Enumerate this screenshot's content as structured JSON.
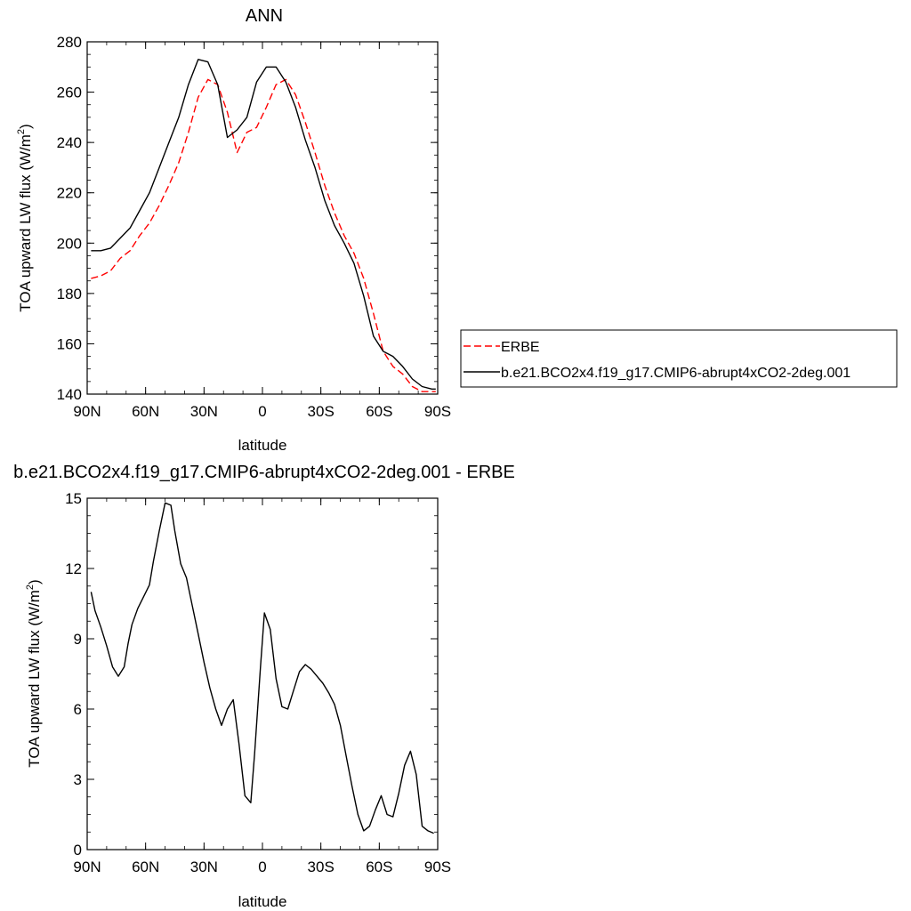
{
  "chart_data": [
    {
      "type": "line",
      "title": "ANN",
      "xlabel": "latitude",
      "ylabel": "TOA upward LW flux (W/m",
      "ylabel_sup": "2",
      "ylabel_end": ")",
      "xlim": [
        -90,
        90
      ],
      "ylim": [
        140,
        280
      ],
      "xticks": [
        -90,
        -60,
        -30,
        0,
        30,
        60,
        90
      ],
      "xtick_labels": [
        "90N",
        "60N",
        "30N",
        "0",
        "30S",
        "60S",
        "90S"
      ],
      "yticks": [
        140,
        160,
        180,
        200,
        220,
        240,
        260,
        280
      ],
      "ytick_labels": [
        "140",
        "160",
        "180",
        "200",
        "220",
        "240",
        "260",
        "280"
      ],
      "x": [
        -88,
        -83,
        -78,
        -73,
        -68,
        -63,
        -58,
        -53,
        -48,
        -43,
        -38,
        -33,
        -28,
        -23,
        -18,
        -13,
        -8,
        -3,
        2,
        7,
        12,
        17,
        22,
        27,
        32,
        37,
        42,
        47,
        52,
        57,
        62,
        67,
        72,
        77,
        82,
        87,
        89
      ],
      "series": [
        {
          "name": "ERBE",
          "color": "#ff0000",
          "dash": "dashed",
          "values": [
            186,
            187,
            189,
            194,
            197,
            203,
            208,
            215,
            223,
            232,
            244,
            258,
            265,
            263,
            252,
            236,
            244,
            246,
            254,
            263,
            265,
            259,
            248,
            236,
            223,
            212,
            203,
            196,
            186,
            172,
            157,
            151,
            148,
            143,
            141,
            141,
            141
          ]
        },
        {
          "name": "b.e21.BCO2x4.f19_g17.CMIP6-abrupt4xCO2-2deg.001",
          "color": "#000000",
          "dash": "solid",
          "values": [
            197,
            197,
            198,
            202,
            206,
            213,
            220,
            230,
            240,
            250,
            263,
            273,
            272,
            263,
            242,
            245,
            250,
            264,
            270,
            270,
            264,
            254,
            241,
            230,
            217,
            207,
            200,
            192,
            179,
            163,
            157,
            155,
            151,
            146,
            143,
            142,
            142
          ]
        }
      ],
      "legend": {
        "location": "right",
        "entries": [
          "ERBE",
          "b.e21.BCO2x4.f19_g17.CMIP6-abrupt4xCO2-2deg.001"
        ]
      },
      "grid": false
    },
    {
      "type": "line",
      "title": "b.e21.BCO2x4.f19_g17.CMIP6-abrupt4xCO2-2deg.001 - ERBE",
      "xlabel": "latitude",
      "ylabel": "TOA upward LW flux (W/m",
      "ylabel_sup": "2",
      "ylabel_end": ")",
      "xlim": [
        -90,
        90
      ],
      "ylim": [
        0,
        15
      ],
      "xticks": [
        -90,
        -60,
        -30,
        0,
        30,
        60,
        90
      ],
      "xtick_labels": [
        "90N",
        "60N",
        "30N",
        "0",
        "30S",
        "60S",
        "90S"
      ],
      "yticks": [
        0,
        3,
        6,
        9,
        12,
        15
      ],
      "ytick_labels": [
        "0",
        "3",
        "6",
        "9",
        "12",
        "15"
      ],
      "x": [
        -88,
        -86,
        -83,
        -80,
        -77,
        -74,
        -71,
        -69,
        -67,
        -64,
        -61,
        -58,
        -56,
        -53,
        -50,
        -47,
        -45,
        -42,
        -39,
        -36,
        -33,
        -30,
        -27,
        -24,
        -21,
        -18,
        -15,
        -12,
        -9,
        -6,
        -4,
        -1,
        1,
        4,
        7,
        10,
        13,
        16,
        19,
        22,
        25,
        28,
        31,
        34,
        37,
        40,
        43,
        46,
        49,
        52,
        55,
        58,
        61,
        64,
        67,
        70,
        73,
        76,
        79,
        82,
        85,
        88
      ],
      "series": [
        {
          "name": "",
          "color": "#000000",
          "dash": "solid",
          "values": [
            11.0,
            10.2,
            9.5,
            8.7,
            7.8,
            7.4,
            7.8,
            8.8,
            9.6,
            10.3,
            10.8,
            11.3,
            12.3,
            13.6,
            14.8,
            14.7,
            13.6,
            12.2,
            11.6,
            10.4,
            9.2,
            8.0,
            6.9,
            6.0,
            5.3,
            6.0,
            6.4,
            4.5,
            2.3,
            2.0,
            4.1,
            7.8,
            10.1,
            9.4,
            7.3,
            6.1,
            6.0,
            6.8,
            7.6,
            7.9,
            7.7,
            7.4,
            7.1,
            6.7,
            6.2,
            5.3,
            4.0,
            2.7,
            1.5,
            0.8,
            1.0,
            1.7,
            2.3,
            1.5,
            1.4,
            2.4,
            3.6,
            4.2,
            3.2,
            1.0,
            0.8,
            0.7
          ]
        }
      ],
      "grid": false
    }
  ]
}
